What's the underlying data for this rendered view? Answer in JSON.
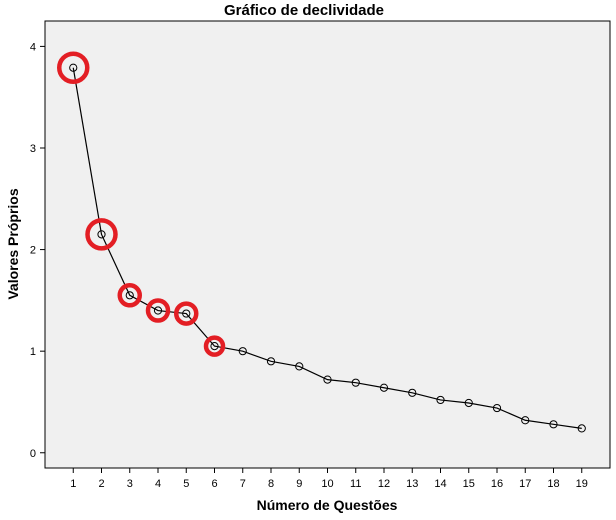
{
  "chart_data": {
    "type": "line",
    "title": "Gráfico de declividade",
    "xlabel": "Número de Questões",
    "ylabel": "Valores Próprios",
    "x": [
      1,
      2,
      3,
      4,
      5,
      6,
      7,
      8,
      9,
      10,
      11,
      12,
      13,
      14,
      15,
      16,
      17,
      18,
      19
    ],
    "xticks": [
      "1",
      "2",
      "3",
      "4",
      "5",
      "6",
      "7",
      "8",
      "9",
      "10",
      "11",
      "12",
      "13",
      "14",
      "15",
      "16",
      "17",
      "18",
      "19"
    ],
    "series": [
      {
        "values": [
          3.79,
          2.15,
          1.55,
          1.4,
          1.37,
          1.05,
          1.0,
          0.9,
          0.85,
          0.72,
          0.69,
          0.64,
          0.59,
          0.52,
          0.49,
          0.44,
          0.32,
          0.28,
          0.24
        ],
        "color": "#000000",
        "marker": "open-circle"
      }
    ],
    "highlighted_x": [
      1,
      2,
      3,
      4,
      5,
      6
    ],
    "highlight_color": "#e31e24",
    "yticks": [
      "0",
      "1",
      "2",
      "3",
      "4"
    ],
    "ylim": [
      -0.15,
      4.25
    ],
    "xlim": [
      0,
      20
    ],
    "background_color": "#f0f0f0",
    "grid": false,
    "legend": "none"
  }
}
